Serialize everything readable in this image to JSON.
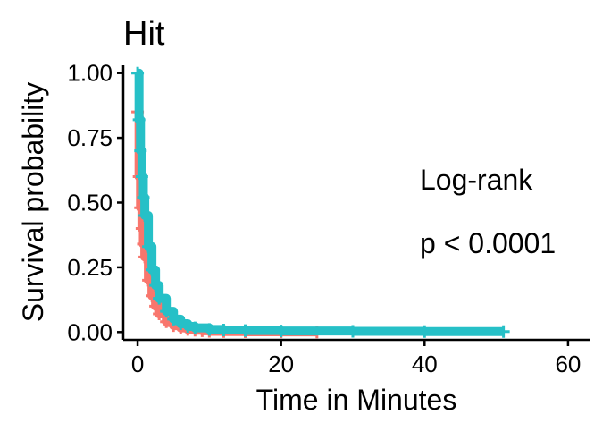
{
  "chart_data": {
    "type": "line",
    "title": "Hit",
    "xlabel": "Time in Minutes",
    "ylabel": "Survival probability",
    "xlim": [
      -2,
      63
    ],
    "ylim": [
      -0.03,
      1.03
    ],
    "x_ticks": [
      "0",
      "20",
      "40",
      "60"
    ],
    "y_ticks": [
      "0.00",
      "0.25",
      "0.50",
      "0.75",
      "1.00"
    ],
    "grid": false,
    "legend": "none",
    "annotation_lines": [
      "Log-rank",
      "p < 0.0001"
    ],
    "series": [
      {
        "color": "#F8766D",
        "x": [
          0,
          0.2,
          0.4,
          0.6,
          0.8,
          1,
          1.5,
          2,
          2.5,
          3,
          4,
          5,
          6,
          7,
          8,
          9,
          10,
          12,
          15,
          20,
          25
        ],
        "y": [
          0.85,
          0.6,
          0.48,
          0.4,
          0.34,
          0.29,
          0.2,
          0.14,
          0.1,
          0.07,
          0.04,
          0.025,
          0.016,
          0.01,
          0.007,
          0.005,
          0.003,
          0.002,
          0.001,
          0.0005,
          0
        ]
      },
      {
        "color": "#26C0C7",
        "x": [
          0,
          0.2,
          0.4,
          0.6,
          0.8,
          1,
          1.5,
          2,
          2.5,
          3,
          4,
          5,
          6,
          7,
          8,
          10,
          12,
          15,
          20,
          30,
          40,
          51
        ],
        "y": [
          1.0,
          0.82,
          0.7,
          0.6,
          0.52,
          0.45,
          0.33,
          0.24,
          0.18,
          0.13,
          0.08,
          0.05,
          0.032,
          0.022,
          0.016,
          0.01,
          0.008,
          0.006,
          0.004,
          0.003,
          0.002,
          0.002
        ]
      }
    ]
  }
}
